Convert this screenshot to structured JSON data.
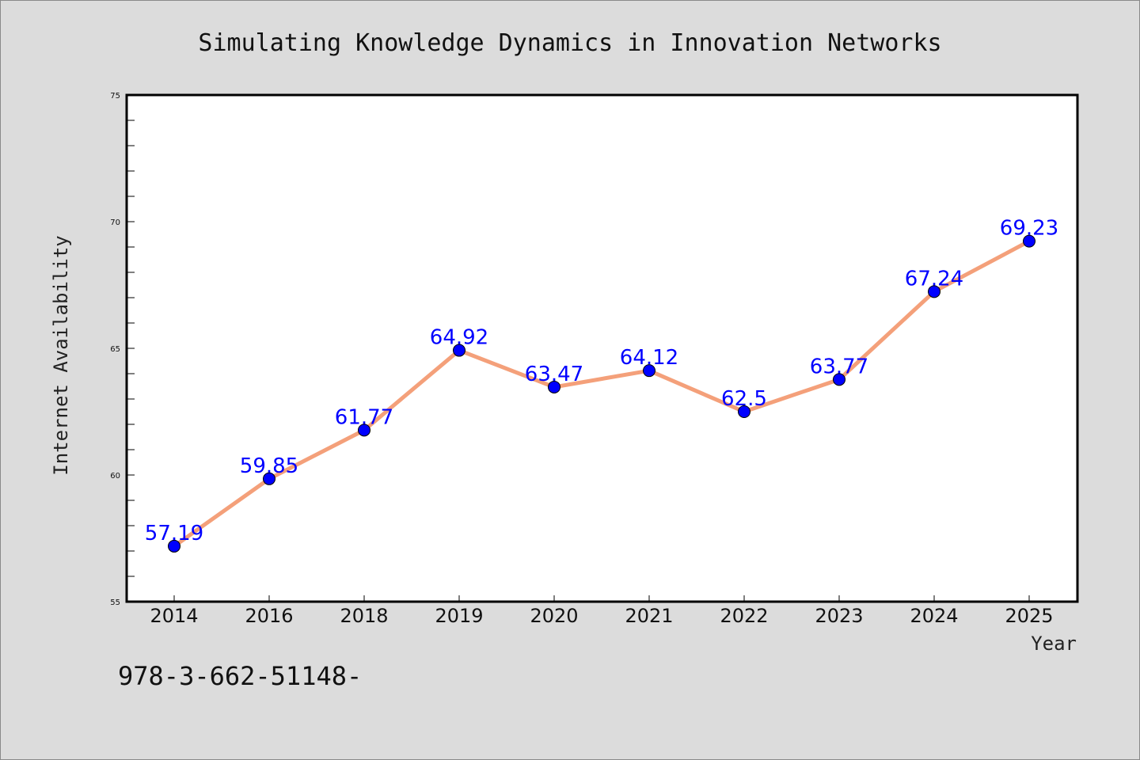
{
  "chart_data": {
    "type": "line",
    "title": "Simulating Knowledge Dynamics in Innovation Networks",
    "xlabel": "Year",
    "ylabel": "Internet Availability",
    "categories": [
      "2014",
      "2016",
      "2018",
      "2019",
      "2020",
      "2021",
      "2022",
      "2023",
      "2024",
      "2025"
    ],
    "values": [
      57.19,
      59.85,
      61.77,
      64.92,
      63.47,
      64.12,
      62.5,
      63.77,
      67.24,
      69.23
    ],
    "data_labels": [
      "57.19",
      "59.85",
      "61.77",
      "64.92",
      "63.47",
      "64.12",
      "62.5",
      "63.77",
      "67.24",
      "69.23"
    ],
    "ylim": [
      55,
      75
    ],
    "yticks": [
      55,
      60,
      65,
      70,
      75
    ],
    "grid": false,
    "legend": "none",
    "colors": {
      "line": "#f4a07a",
      "marker": "#0000ff",
      "data_label": "#0000ff",
      "plot_background": "#ffffff",
      "figure_background": "#dcdcdc"
    }
  },
  "footer": {
    "text": "978-3-662-51148-"
  }
}
